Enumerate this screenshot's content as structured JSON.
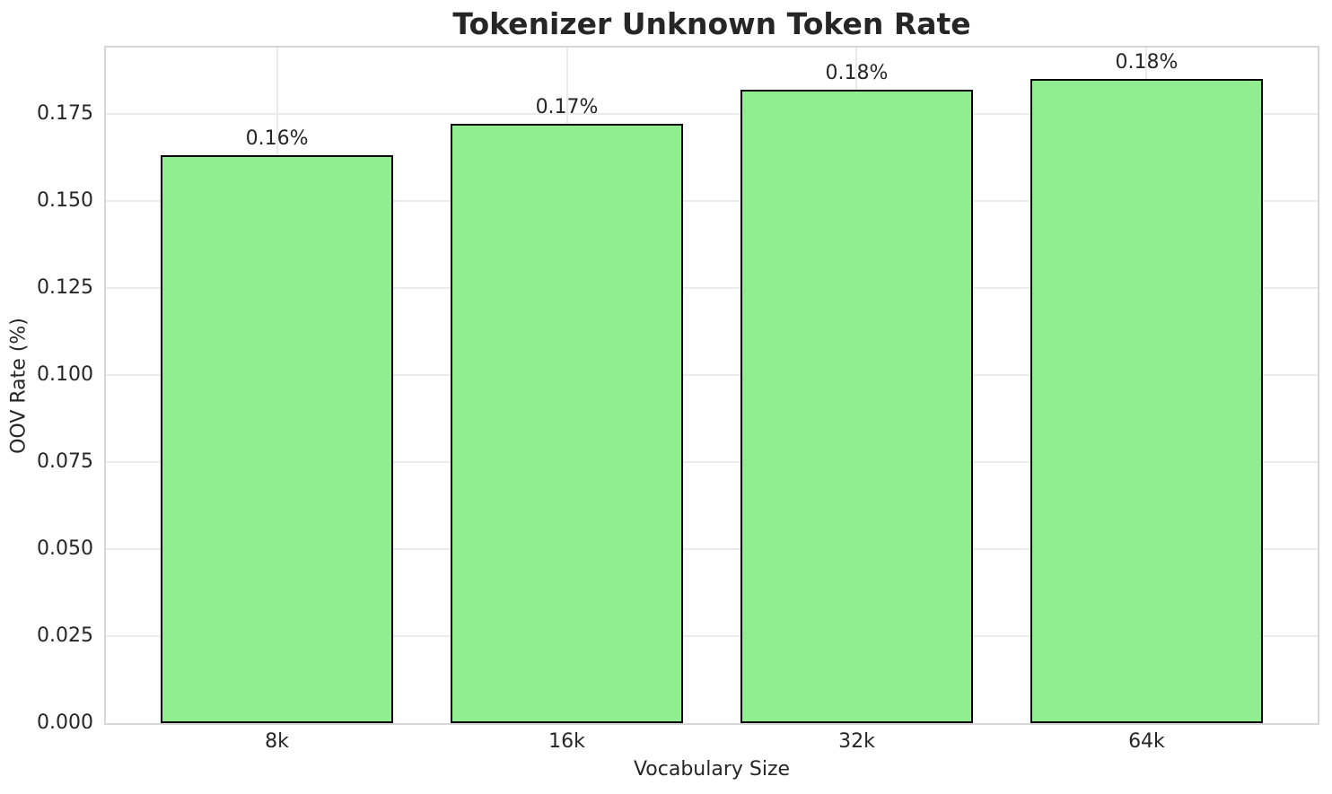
{
  "chart_data": {
    "type": "bar",
    "title": "Tokenizer Unknown Token Rate",
    "xlabel": "Vocabulary Size",
    "ylabel": "OOV Rate (%)",
    "categories": [
      "8k",
      "16k",
      "32k",
      "64k"
    ],
    "values": [
      0.163,
      0.172,
      0.182,
      0.185
    ],
    "bar_labels": [
      "0.16%",
      "0.17%",
      "0.18%",
      "0.18%"
    ],
    "yticks": [
      0.0,
      0.025,
      0.05,
      0.075,
      0.1,
      0.125,
      0.15,
      0.175
    ],
    "ytick_labels": [
      "0.000",
      "0.025",
      "0.050",
      "0.075",
      "0.100",
      "0.125",
      "0.150",
      "0.175"
    ],
    "ylim": [
      0,
      0.194
    ],
    "bar_width_fraction": 0.8,
    "grid": true,
    "legend": "none",
    "colors": {
      "bar_fill": "#90ee90",
      "bar_edge": "#000000",
      "grid": "#ebebeb",
      "spine": "#d6d6d6",
      "text": "#262626",
      "background": "#ffffff"
    }
  }
}
